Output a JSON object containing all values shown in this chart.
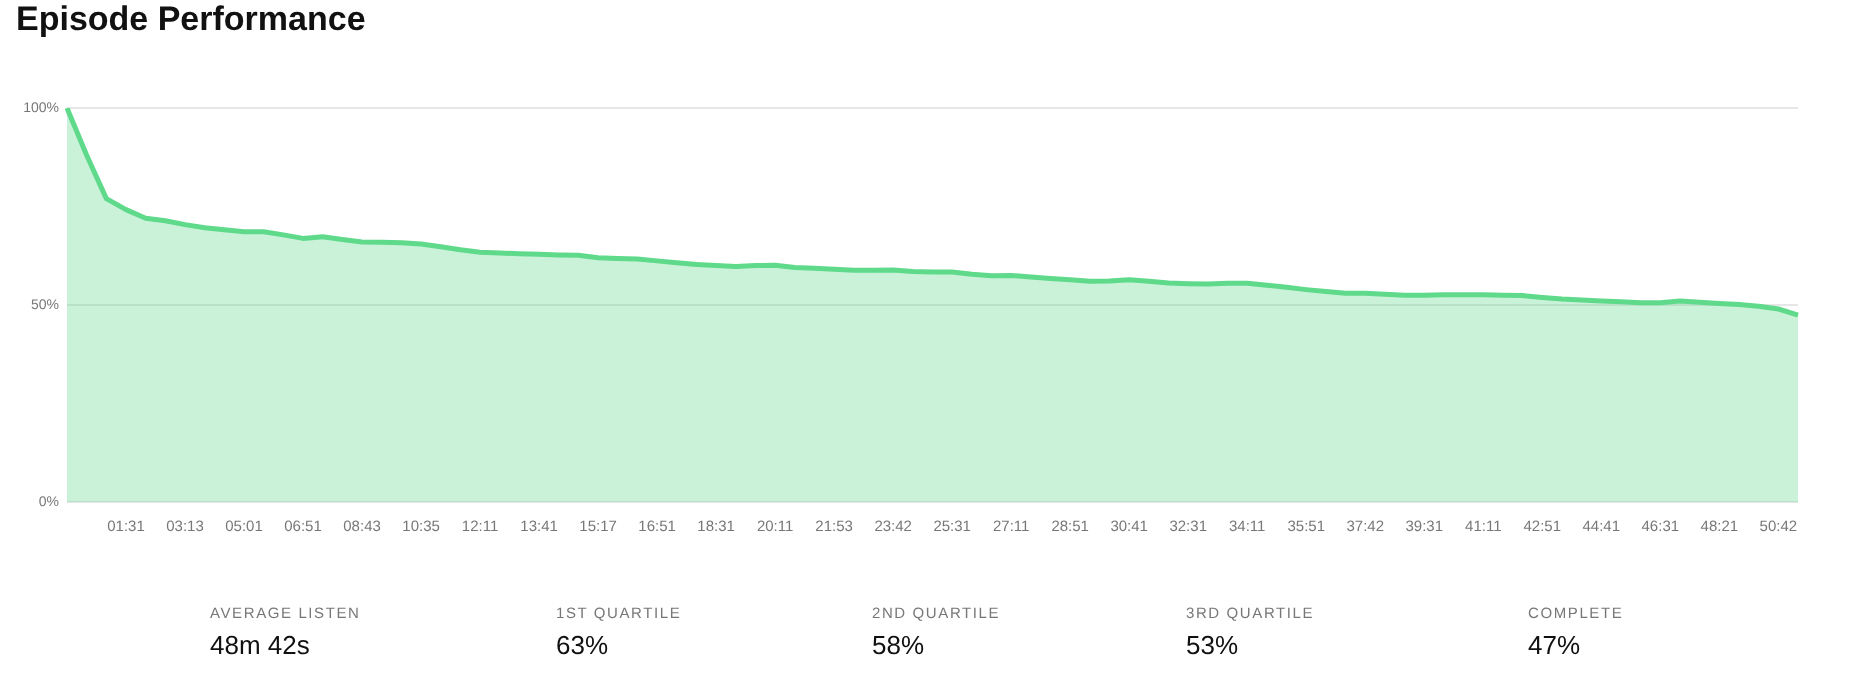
{
  "chart_data": {
    "type": "area",
    "title": "Episode Performance",
    "categories": [
      null,
      null,
      null,
      "01:31",
      null,
      null,
      "03:13",
      null,
      null,
      "05:01",
      null,
      null,
      "06:51",
      null,
      null,
      "08:43",
      null,
      null,
      "10:35",
      null,
      null,
      "12:11",
      null,
      null,
      "13:41",
      null,
      null,
      "15:17",
      null,
      null,
      "16:51",
      null,
      null,
      "18:31",
      null,
      null,
      "20:11",
      null,
      null,
      "21:53",
      null,
      null,
      "23:42",
      null,
      null,
      "25:31",
      null,
      null,
      "27:11",
      null,
      null,
      "28:51",
      null,
      null,
      "30:41",
      null,
      null,
      "32:31",
      null,
      null,
      "34:11",
      null,
      null,
      "35:51",
      null,
      null,
      "37:42",
      null,
      null,
      "39:31",
      null,
      null,
      "41:11",
      null,
      null,
      "42:51",
      null,
      null,
      "44:41",
      null,
      null,
      "46:31",
      null,
      null,
      "48:21",
      null,
      null,
      "50:42",
      null
    ],
    "series": [
      {
        "color": "#5fd98a",
        "values": [
          100,
          88,
          77,
          74.2,
          72,
          71.4,
          70.4,
          69.6,
          69.1,
          68.6,
          68.6,
          67.8,
          66.9,
          67.3,
          66.6,
          66,
          65.9,
          65.8,
          65.5,
          64.8,
          64,
          63.4,
          63.2,
          63,
          62.9,
          62.7,
          62.6,
          62,
          61.8,
          61.7,
          61.2,
          60.7,
          60.3,
          60,
          59.8,
          60,
          60.1,
          59.5,
          59.3,
          59.1,
          58.8,
          58.8,
          58.9,
          58.5,
          58.4,
          58.4,
          57.8,
          57.4,
          57.5,
          57.1,
          56.7,
          56.4,
          56,
          56.1,
          56.4,
          56,
          55.6,
          55.4,
          55.3,
          55.5,
          55.5,
          55,
          54.5,
          53.9,
          53.4,
          53,
          53,
          52.7,
          52.5,
          52.5,
          52.6,
          52.6,
          52.6,
          52.5,
          52.4,
          51.9,
          51.5,
          51.3,
          51,
          50.8,
          50.6,
          50.6,
          51,
          50.7,
          50.4,
          50.1,
          49.7,
          49,
          47.4
        ]
      }
    ],
    "ylim": [
      0,
      100
    ],
    "yticks": [
      {
        "value": 0,
        "label": "0%"
      },
      {
        "value": 50,
        "label": "50%"
      },
      {
        "value": 100,
        "label": "100%"
      }
    ],
    "grid": "y",
    "legend": false,
    "marker": "none",
    "annotations": [
      "AVERAGE LISTEN",
      "48m 42s",
      "1ST QUARTILE",
      "63%",
      "2ND QUARTILE",
      "58%",
      "3RD QUARTILE",
      "53%",
      "COMPLETE",
      "47%"
    ]
  }
}
